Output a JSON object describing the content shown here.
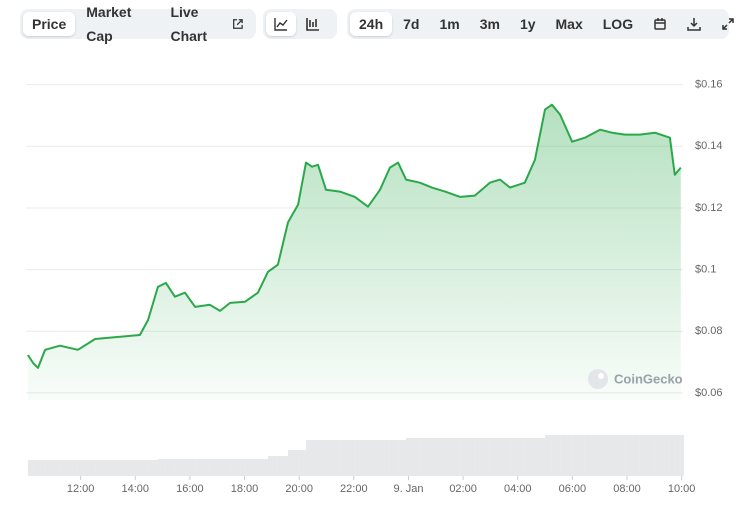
{
  "toolbar": {
    "metrics": [
      "Price",
      "Market Cap",
      "Live Chart"
    ],
    "ranges": [
      "24h",
      "7d",
      "1m",
      "3m",
      "1y",
      "Max",
      "LOG"
    ]
  },
  "watermark": "CoinGecko",
  "chart_data": {
    "type": "area",
    "color": "#2aa84a",
    "x": [
      10.07,
      10.26,
      10.44,
      10.7,
      11.24,
      11.9,
      12.53,
      13.44,
      14.17,
      14.47,
      14.83,
      15.12,
      15.45,
      15.82,
      16.19,
      16.73,
      17.1,
      17.47,
      18.02,
      18.49,
      18.86,
      19.22,
      19.59,
      19.96,
      20.25,
      20.47,
      20.69,
      20.98,
      21.49,
      22.04,
      22.52,
      22.96,
      23.32,
      23.62,
      23.91,
      24.42,
      24.86,
      25.34,
      25.89,
      26.43,
      26.98,
      27.35,
      27.72,
      28.26,
      28.63,
      29.0,
      29.25,
      29.55,
      29.99,
      30.46,
      31.01,
      31.45,
      31.93,
      32.47,
      33.02,
      33.57,
      33.75,
      33.97
    ],
    "values": [
      0.0723,
      0.0697,
      0.0681,
      0.074,
      0.0753,
      0.074,
      0.0775,
      0.0782,
      0.0788,
      0.0837,
      0.0944,
      0.0957,
      0.0912,
      0.0925,
      0.0879,
      0.0886,
      0.0866,
      0.0892,
      0.0896,
      0.0925,
      0.0993,
      0.1016,
      0.1153,
      0.1211,
      0.1347,
      0.1334,
      0.134,
      0.1259,
      0.1253,
      0.1236,
      0.1204,
      0.1259,
      0.1331,
      0.1347,
      0.1292,
      0.1282,
      0.1266,
      0.1253,
      0.1236,
      0.124,
      0.1282,
      0.1292,
      0.1266,
      0.1282,
      0.1356,
      0.1519,
      0.1535,
      0.1503,
      0.1415,
      0.1428,
      0.1454,
      0.1444,
      0.1438,
      0.1438,
      0.1444,
      0.1428,
      0.1308,
      0.1331
    ],
    "volume": [
      16,
      16,
      16,
      16,
      16,
      16,
      16,
      16,
      16,
      16,
      17,
      17,
      17,
      17,
      17,
      17,
      17,
      17,
      17,
      17,
      20,
      20,
      26,
      26,
      36,
      36,
      36,
      36,
      36,
      36,
      36,
      36,
      36,
      36,
      38,
      38,
      38,
      38,
      38,
      38,
      38,
      38,
      38,
      38,
      38,
      41,
      41,
      41,
      41,
      41,
      41,
      41,
      41,
      41,
      41,
      41,
      41,
      41
    ],
    "volume_ylim": [
      0,
      60
    ],
    "xlim": [
      10,
      34.05
    ],
    "xticks": [
      {
        "value": 12,
        "label": "12:00"
      },
      {
        "value": 14,
        "label": "14:00"
      },
      {
        "value": 16,
        "label": "16:00"
      },
      {
        "value": 18,
        "label": "18:00"
      },
      {
        "value": 20,
        "label": "20:00"
      },
      {
        "value": 22,
        "label": "22:00"
      },
      {
        "value": 24,
        "label": "9. Jan"
      },
      {
        "value": 26,
        "label": "02:00"
      },
      {
        "value": 28,
        "label": "04:00"
      },
      {
        "value": 30,
        "label": "06:00"
      },
      {
        "value": 32,
        "label": "08:00"
      },
      {
        "value": 34,
        "label": "10:00"
      }
    ],
    "ylim": [
      0.0577,
      0.168
    ],
    "yticks": [
      {
        "value": 0.06,
        "label": "$0.06"
      },
      {
        "value": 0.08,
        "label": "$0.08"
      },
      {
        "value": 0.1,
        "label": "$0.1"
      },
      {
        "value": 0.12,
        "label": "$0.12"
      },
      {
        "value": 0.14,
        "label": "$0.14"
      },
      {
        "value": 0.16,
        "label": "$0.16"
      }
    ],
    "grid": true
  }
}
